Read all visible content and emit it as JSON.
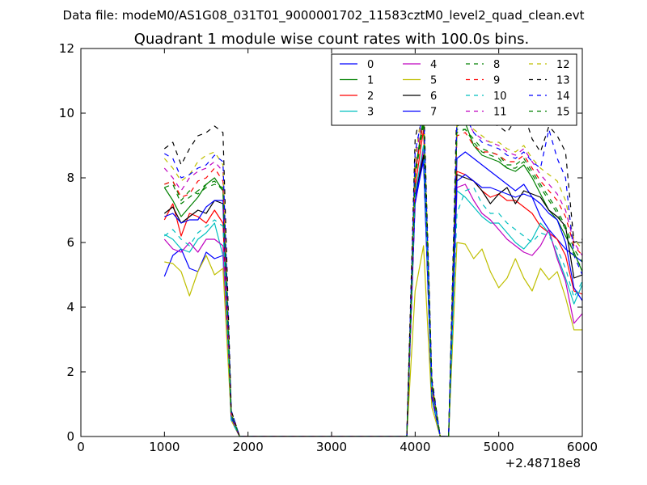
{
  "suptitle": "Data file: modeM0/AS1G08_031T01_9000001702_11583cztM0_level2_quad_clean.evt",
  "chart_data": {
    "type": "line",
    "title": "Quadrant 1 module wise count rates with 100.0s bins.",
    "xlabel": "",
    "ylabel": "",
    "offset_text": "+2.48718e8",
    "xlim": [
      0,
      6000
    ],
    "ylim": [
      0,
      12
    ],
    "xticks": [
      0,
      1000,
      2000,
      3000,
      4000,
      5000,
      6000
    ],
    "yticks": [
      0,
      2,
      4,
      6,
      8,
      10,
      12
    ],
    "grid": false,
    "legend_position": "top-right",
    "legend_columns": 4,
    "x": [
      1000,
      1100,
      1200,
      1300,
      1400,
      1500,
      1600,
      1700,
      1800,
      1900,
      2000,
      2100,
      2200,
      2300,
      2400,
      2500,
      2600,
      2700,
      2800,
      2900,
      3000,
      3100,
      3200,
      3300,
      3400,
      3500,
      3600,
      3700,
      3800,
      3900,
      4000,
      4100,
      4200,
      4300,
      4400,
      4500,
      4600,
      4700,
      4800,
      4900,
      5000,
      5100,
      5200,
      5300,
      5400,
      5500,
      5600,
      5700,
      5800,
      5900,
      6000
    ],
    "series": [
      {
        "name": "0",
        "color": "#0000ff",
        "dash": "solid",
        "values": [
          4.95,
          5.6,
          5.8,
          5.2,
          5.1,
          5.7,
          5.5,
          5.6,
          0.6,
          0,
          0,
          0,
          0,
          0,
          0,
          0,
          0,
          0,
          0,
          0,
          0,
          0,
          0,
          0,
          0,
          0,
          0,
          0,
          0,
          0,
          7.2,
          8.6,
          1.2,
          0,
          0,
          8.6,
          8.8,
          8.6,
          8.4,
          8.2,
          8.0,
          7.8,
          7.6,
          7.8,
          7.4,
          6.8,
          6.4,
          6.1,
          5.8,
          5.6,
          5.4
        ]
      },
      {
        "name": "1",
        "color": "#008000",
        "dash": "solid",
        "values": [
          7.7,
          7.3,
          6.8,
          7.1,
          7.4,
          7.8,
          8.0,
          7.6,
          0.6,
          0,
          0,
          0,
          0,
          0,
          0,
          0,
          0,
          0,
          0,
          0,
          0,
          0,
          0,
          0,
          0,
          0,
          0,
          0,
          0,
          0,
          8.2,
          9.9,
          1.6,
          0,
          0,
          9.6,
          9.7,
          9.0,
          8.7,
          8.6,
          8.5,
          8.3,
          8.2,
          8.4,
          8.0,
          7.5,
          7.0,
          6.7,
          6.2,
          5.7,
          5.1
        ]
      },
      {
        "name": "2",
        "color": "#ff0000",
        "dash": "solid",
        "values": [
          6.7,
          7.2,
          6.2,
          6.9,
          6.8,
          6.6,
          7.0,
          6.6,
          0.5,
          0,
          0,
          0,
          0,
          0,
          0,
          0,
          0,
          0,
          0,
          0,
          0,
          0,
          0,
          0,
          0,
          0,
          0,
          0,
          0,
          0,
          7.7,
          9.5,
          1.4,
          0,
          0,
          8.2,
          8.1,
          7.9,
          7.6,
          7.4,
          7.5,
          7.3,
          7.3,
          7.1,
          6.9,
          6.5,
          6.3,
          6.1,
          5.6,
          4.5,
          4.4
        ]
      },
      {
        "name": "3",
        "color": "#00bfbf",
        "dash": "solid",
        "values": [
          6.25,
          6.1,
          5.8,
          5.7,
          6.1,
          6.3,
          6.6,
          5.6,
          0.5,
          0,
          0,
          0,
          0,
          0,
          0,
          0,
          0,
          0,
          0,
          0,
          0,
          0,
          0,
          0,
          0,
          0,
          0,
          0,
          0,
          0,
          7.5,
          9.0,
          1.3,
          0,
          0,
          7.6,
          7.4,
          7.1,
          6.8,
          6.6,
          6.6,
          6.3,
          6.0,
          5.8,
          6.1,
          6.6,
          6.3,
          5.6,
          4.9,
          4.1,
          4.7
        ]
      },
      {
        "name": "4",
        "color": "#bf00bf",
        "dash": "solid",
        "values": [
          6.1,
          5.8,
          5.7,
          6.0,
          5.7,
          6.1,
          6.1,
          5.9,
          0.5,
          0,
          0,
          0,
          0,
          0,
          0,
          0,
          0,
          0,
          0,
          0,
          0,
          0,
          0,
          0,
          0,
          0,
          0,
          0,
          0,
          0,
          7.3,
          8.9,
          1.3,
          0,
          0,
          7.7,
          7.8,
          7.3,
          6.9,
          6.7,
          6.4,
          6.1,
          5.9,
          5.7,
          5.6,
          5.9,
          6.4,
          5.5,
          4.8,
          3.5,
          3.8
        ]
      },
      {
        "name": "5",
        "color": "#bfbf00",
        "dash": "solid",
        "values": [
          5.4,
          5.35,
          5.1,
          4.35,
          5.1,
          5.6,
          5.0,
          5.2,
          0.5,
          0,
          0,
          0,
          0,
          0,
          0,
          0,
          0,
          0,
          0,
          0,
          0,
          0,
          0,
          0,
          0,
          0,
          0,
          0,
          0,
          0,
          4.5,
          5.9,
          0.9,
          0,
          0,
          6.0,
          5.95,
          5.5,
          5.8,
          5.1,
          4.6,
          4.9,
          5.5,
          4.9,
          4.5,
          5.2,
          4.85,
          5.1,
          4.3,
          3.3,
          3.3
        ]
      },
      {
        "name": "6",
        "color": "#000000",
        "dash": "solid",
        "values": [
          6.9,
          7.1,
          6.6,
          6.8,
          7.0,
          6.9,
          7.3,
          7.2,
          0.6,
          0,
          0,
          0,
          0,
          0,
          0,
          0,
          0,
          0,
          0,
          0,
          0,
          0,
          0,
          0,
          0,
          0,
          0,
          0,
          0,
          0,
          7.4,
          8.7,
          1.2,
          0,
          0,
          8.1,
          8.0,
          7.9,
          7.6,
          7.2,
          7.5,
          7.7,
          7.2,
          7.6,
          7.5,
          7.4,
          7.0,
          6.8,
          6.5,
          4.9,
          5.0
        ]
      },
      {
        "name": "7",
        "color": "#0000ff",
        "dash": "solid",
        "values": [
          6.8,
          6.9,
          6.6,
          6.7,
          6.7,
          7.1,
          7.3,
          7.3,
          0.6,
          0,
          0,
          0,
          0,
          0,
          0,
          0,
          0,
          0,
          0,
          0,
          0,
          0,
          0,
          0,
          0,
          0,
          0,
          0,
          0,
          0,
          7.4,
          8.5,
          1.2,
          0,
          0,
          7.9,
          8.1,
          7.9,
          7.7,
          7.7,
          7.6,
          7.5,
          7.4,
          7.5,
          7.4,
          7.2,
          6.9,
          6.7,
          6.0,
          4.6,
          4.2
        ]
      },
      {
        "name": "8",
        "color": "#008000",
        "dash": "dashed",
        "values": [
          7.8,
          7.9,
          7.3,
          7.6,
          7.5,
          7.7,
          7.8,
          7.7,
          0.7,
          0,
          0,
          0,
          0,
          0,
          0,
          0,
          0,
          0,
          0,
          0,
          0,
          0,
          0,
          0,
          0,
          0,
          0,
          0,
          0,
          0,
          8.1,
          9.8,
          1.6,
          0,
          0,
          9.5,
          9.5,
          9.2,
          8.9,
          8.8,
          8.7,
          8.4,
          8.4,
          8.6,
          8.2,
          7.8,
          7.4,
          7.0,
          6.5,
          5.8,
          5.4
        ]
      },
      {
        "name": "9",
        "color": "#ff0000",
        "dash": "dashed",
        "values": [
          7.8,
          7.9,
          7.4,
          7.5,
          7.9,
          8.0,
          8.3,
          7.9,
          0.7,
          0,
          0,
          0,
          0,
          0,
          0,
          0,
          0,
          0,
          0,
          0,
          0,
          0,
          0,
          0,
          0,
          0,
          0,
          0,
          0,
          0,
          8.1,
          9.8,
          1.5,
          0,
          0,
          9.3,
          9.4,
          9.0,
          8.8,
          8.8,
          8.7,
          8.5,
          8.5,
          8.7,
          8.3,
          7.9,
          7.6,
          7.3,
          6.8,
          5.9,
          5.6
        ]
      },
      {
        "name": "10",
        "color": "#00bfbf",
        "dash": "dashed",
        "values": [
          6.2,
          6.4,
          6.1,
          5.9,
          6.3,
          6.5,
          6.7,
          6.5,
          0.5,
          0,
          0,
          0,
          0,
          0,
          0,
          0,
          0,
          0,
          0,
          0,
          0,
          0,
          0,
          0,
          0,
          0,
          0,
          0,
          0,
          0,
          7.5,
          9.0,
          1.3,
          0,
          0,
          6.9,
          7.6,
          7.7,
          7.2,
          6.9,
          6.9,
          6.6,
          6.4,
          6.2,
          6.0,
          6.3,
          6.2,
          5.8,
          5.2,
          4.3,
          4.8
        ]
      },
      {
        "name": "11",
        "color": "#bf00bf",
        "dash": "dashed",
        "values": [
          8.3,
          8.0,
          7.6,
          8.0,
          8.2,
          8.3,
          8.5,
          8.2,
          0.7,
          0,
          0,
          0,
          0,
          0,
          0,
          0,
          0,
          0,
          0,
          0,
          0,
          0,
          0,
          0,
          0,
          0,
          0,
          0,
          0,
          0,
          8.5,
          10.1,
          1.7,
          0,
          0,
          9.8,
          9.9,
          9.4,
          9.2,
          9.1,
          9.0,
          8.8,
          8.7,
          8.9,
          8.5,
          8.1,
          7.8,
          7.5,
          7.0,
          6.0,
          5.6
        ]
      },
      {
        "name": "12",
        "color": "#bfbf00",
        "dash": "dashed",
        "values": [
          8.6,
          8.3,
          7.9,
          8.1,
          8.5,
          8.7,
          8.8,
          8.4,
          0.7,
          0,
          0,
          0,
          0,
          0,
          0,
          0,
          0,
          0,
          0,
          0,
          0,
          0,
          0,
          0,
          0,
          0,
          0,
          0,
          0,
          0,
          8.7,
          10.3,
          1.7,
          0,
          0,
          9.9,
          10.0,
          9.5,
          9.3,
          9.1,
          9.1,
          8.9,
          8.8,
          9.0,
          8.6,
          8.3,
          8.1,
          7.9,
          7.3,
          6.1,
          5.8
        ]
      },
      {
        "name": "13",
        "color": "#000000",
        "dash": "dashed",
        "values": [
          8.9,
          9.1,
          8.4,
          8.9,
          9.3,
          9.4,
          9.6,
          9.4,
          0.8,
          0,
          0,
          0,
          0,
          0,
          0,
          0,
          0,
          0,
          0,
          0,
          0,
          0,
          0,
          0,
          0,
          0,
          0,
          0,
          0,
          0,
          9.2,
          10.5,
          1.8,
          0,
          0,
          10.4,
          10.6,
          10.1,
          9.9,
          9.7,
          9.6,
          9.4,
          9.8,
          10.0,
          9.2,
          8.8,
          9.6,
          9.3,
          8.8,
          6.0,
          6.1
        ]
      },
      {
        "name": "14",
        "color": "#0000ff",
        "dash": "dashed",
        "values": [
          8.75,
          8.6,
          8.0,
          8.1,
          8.3,
          8.4,
          8.7,
          8.5,
          0.8,
          0,
          0,
          0,
          0,
          0,
          0,
          0,
          0,
          0,
          0,
          0,
          0,
          0,
          0,
          0,
          0,
          0,
          0,
          0,
          0,
          0,
          8.8,
          10.1,
          1.7,
          0,
          0,
          9.8,
          9.9,
          9.4,
          9.1,
          9.0,
          8.9,
          8.7,
          8.6,
          8.8,
          8.5,
          8.3,
          9.5,
          8.6,
          8.0,
          5.6,
          5.0
        ]
      },
      {
        "name": "15",
        "color": "#008000",
        "dash": "dashed",
        "values": [
          7.7,
          7.8,
          7.2,
          7.4,
          7.6,
          7.8,
          7.9,
          7.6,
          0.7,
          0,
          0,
          0,
          0,
          0,
          0,
          0,
          0,
          0,
          0,
          0,
          0,
          0,
          0,
          0,
          0,
          0,
          0,
          0,
          0,
          0,
          8.0,
          9.7,
          1.6,
          0,
          0,
          9.4,
          9.5,
          9.1,
          8.8,
          8.7,
          8.6,
          8.3,
          8.3,
          8.5,
          8.1,
          7.7,
          7.3,
          6.9,
          6.4,
          5.6,
          5.2
        ]
      }
    ]
  }
}
